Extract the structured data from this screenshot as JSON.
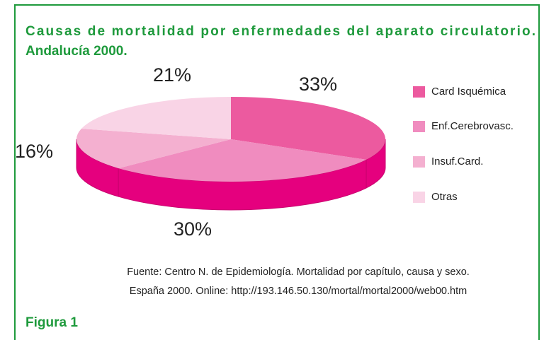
{
  "chart_data": {
    "type": "pie",
    "title": [
      "Causas de mortalidad por enfermedades del aparato circulatorio.",
      "Andalucía 2000."
    ],
    "categories": [
      "Card Isquémica",
      "Enf.Cerebrovasc.",
      "Insuf.Card.",
      "Otras"
    ],
    "values": [
      33,
      30,
      16,
      21
    ],
    "value_labels": [
      "33%",
      "30%",
      "16%",
      "21%"
    ],
    "colors": [
      "#ec5a9f",
      "#f08cbf",
      "#f4b0d0",
      "#f9d4e6"
    ],
    "legend": "right",
    "source": [
      "Fuente: Centro N. de Epidemiología. Mortalidad por capítulo, causa y sexo.",
      "España 2000.  Online:  http://193.146.50.130/mortal/mortal2000/web00.htm"
    ],
    "figure_label": "Figura 1"
  }
}
